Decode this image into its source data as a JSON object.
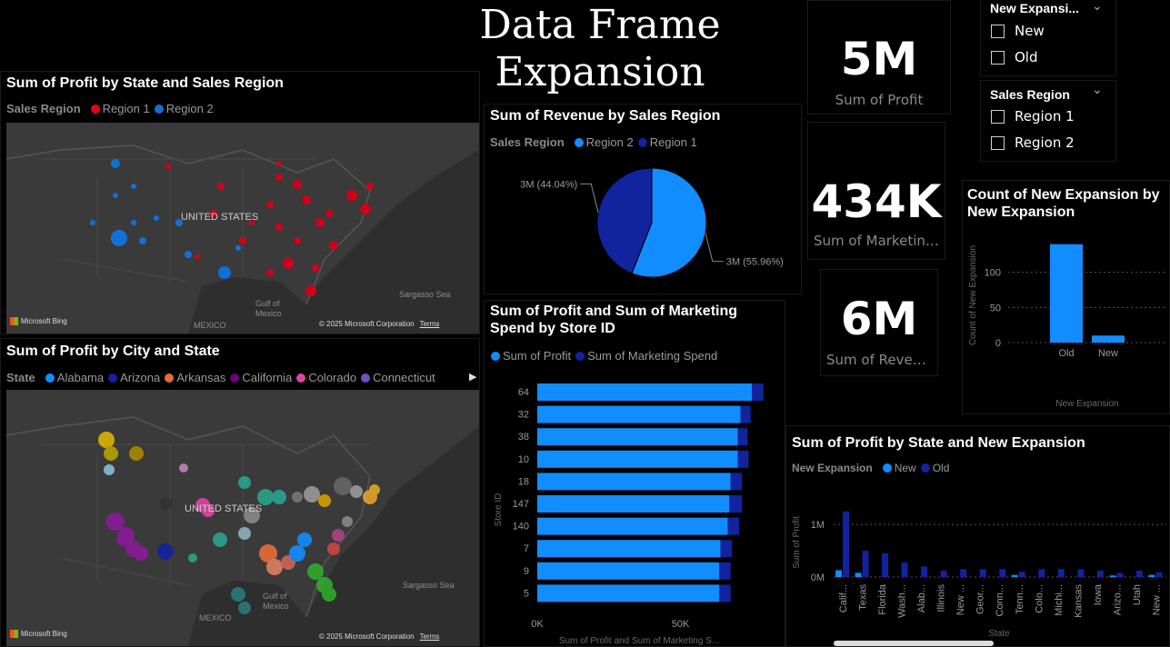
{
  "dashboard": {
    "title": "Data Frame Expansion"
  },
  "map_profit_region": {
    "title": "Sum of Profit by State and Sales Region",
    "legend_title": "Sales Region",
    "legend": [
      {
        "label": "Region 1",
        "color": "#e8001c"
      },
      {
        "label": "Region 2",
        "color": "#1170d8"
      }
    ],
    "labels": {
      "country": "UNITED STATES",
      "gulf": "Gulf of Mexico",
      "mexico": "MEXICO",
      "sea": "Sargasso Sea"
    },
    "bing": "Microsoft Bing",
    "copyright": "© 2025 Microsoft Corporation",
    "terms": "Terms"
  },
  "map_profit_city": {
    "title": "Sum of Profit by City and State",
    "legend_title": "State",
    "legend": [
      {
        "label": "Alabama",
        "color": "#118dff"
      },
      {
        "label": "Arizona",
        "color": "#12239e"
      },
      {
        "label": "Arkansas",
        "color": "#e66c37"
      },
      {
        "label": "California",
        "color": "#6b007b"
      },
      {
        "label": "Colorado",
        "color": "#e044a7"
      },
      {
        "label": "Connecticut",
        "color": "#744ec2"
      }
    ],
    "labels": {
      "country": "UNITED STATES",
      "gulf": "Gulf of Mexico",
      "mexico": "MEXICO",
      "sea": "Sargasso Sea"
    },
    "bing": "Microsoft Bing",
    "copyright": "© 2025 Microsoft Corporation",
    "terms": "Terms"
  },
  "kpis": {
    "profit": {
      "value": "5M",
      "label": "Sum of Profit"
    },
    "marketing": {
      "value": "434K",
      "label": "Sum of Marketing..."
    },
    "revenue": {
      "value": "6M",
      "label": "Sum of Revenue"
    }
  },
  "slicers": {
    "new_expansion": {
      "title": "New Expansi...",
      "options": [
        "New",
        "Old"
      ]
    },
    "sales_region": {
      "title": "Sales Region",
      "options": [
        "Region 1",
        "Region 2"
      ]
    }
  },
  "colors": {
    "light_blue": "#118dff",
    "dark_blue": "#12239e"
  },
  "chart_data": [
    {
      "id": "revenue_pie",
      "type": "pie",
      "title": "Sum of Revenue by Sales Region",
      "legend_title": "Sales Region",
      "labels": [
        "Region 2",
        "Region 1"
      ],
      "values": [
        55.96,
        44.04
      ],
      "data_labels": [
        "3M (55.96%)",
        "3M (44.04%)"
      ]
    },
    {
      "id": "store_bar",
      "type": "bar",
      "orientation": "horizontal",
      "title": "Sum of Profit and Sum of Marketing Spend by Store ID",
      "legend": [
        "Sum of Profit",
        "Sum of Marketing Spend"
      ],
      "categories": [
        "64",
        "32",
        "38",
        "10",
        "18",
        "147",
        "140",
        "7",
        "9",
        "5"
      ],
      "series": [
        {
          "name": "Sum of Profit",
          "values": [
            75000,
            71000,
            70000,
            70000,
            67500,
            67000,
            66500,
            64000,
            63500,
            63500
          ]
        },
        {
          "name": "Sum of Marketing Spend",
          "values": [
            4000,
            3500,
            3500,
            3800,
            4000,
            4500,
            4000,
            4000,
            4000,
            4000
          ]
        }
      ],
      "stacked": true,
      "xticks": [
        "0K",
        "50K"
      ],
      "xlim": [
        0,
        80000
      ],
      "ylabel": "Store ID",
      "xlabel": "Sum of Profit and Sum of Marketing S..."
    },
    {
      "id": "expansion_count",
      "type": "bar",
      "title": "Count of New Expansion by New Expansion",
      "categories": [
        "Old",
        "New"
      ],
      "values": [
        140,
        10
      ],
      "ylim": [
        0,
        150
      ],
      "yticks": [
        "0",
        "50",
        "100"
      ],
      "ylabel": "Count of New Expansion",
      "xlabel": "New Expansion"
    },
    {
      "id": "profit_state_expansion",
      "type": "bar",
      "title": "Sum of Profit by State and New Expansion",
      "legend_title": "New Expansion",
      "categories": [
        "Calif...",
        "Texas",
        "Florida",
        "Wash...",
        "Alab...",
        "Illinois",
        "New ...",
        "Geor...",
        "Conn...",
        "Tenn...",
        "Colo...",
        "Michi...",
        "Kansas",
        "Iowa",
        "Arizo...",
        "Utah",
        "New ..."
      ],
      "series": [
        {
          "name": "New",
          "values": [
            130000,
            80000,
            0,
            0,
            0,
            0,
            0,
            0,
            0,
            40000,
            0,
            0,
            0,
            0,
            30000,
            0,
            40000
          ]
        },
        {
          "name": "Old",
          "values": [
            1250000,
            500000,
            450000,
            280000,
            200000,
            120000,
            150000,
            150000,
            150000,
            100000,
            150000,
            150000,
            150000,
            120000,
            80000,
            120000,
            90000
          ]
        }
      ],
      "ylim": [
        0,
        1400000
      ],
      "yticks": [
        "0M",
        "1M"
      ],
      "ylabel": "Sum of Profit",
      "xlabel": "State"
    }
  ]
}
